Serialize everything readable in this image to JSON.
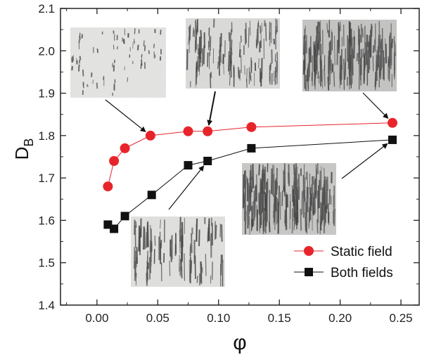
{
  "chart_data": {
    "type": "scatter",
    "xlabel": "φ",
    "ylabel": "D",
    "ylabel_subscript": "B",
    "xlim": [
      -0.03,
      0.265
    ],
    "ylim": [
      1.4,
      2.1
    ],
    "x_ticks": [
      0.0,
      0.05,
      0.1,
      0.15,
      0.2,
      0.25
    ],
    "x_tick_labels": [
      "0.00",
      "0.05",
      "0.10",
      "0.15",
      "0.20",
      "0.25"
    ],
    "y_ticks": [
      1.4,
      1.5,
      1.6,
      1.7,
      1.8,
      1.9,
      2.0,
      2.1
    ],
    "y_tick_labels": [
      "1.4",
      "1.5",
      "1.6",
      "1.7",
      "1.8",
      "1.9",
      "2.0",
      "2.1"
    ],
    "legend_position": "bottom-right",
    "series": [
      {
        "name": "Static field",
        "marker": "circle",
        "color": "#e8242b",
        "line_color": "#e8242b",
        "x": [
          0.009,
          0.014,
          0.023,
          0.044,
          0.075,
          0.091,
          0.127,
          0.243
        ],
        "y": [
          1.68,
          1.74,
          1.77,
          1.8,
          1.81,
          1.81,
          1.82,
          1.83
        ]
      },
      {
        "name": "Both fields",
        "marker": "square",
        "color": "#111111",
        "line_color": "#111111",
        "x": [
          0.009,
          0.014,
          0.023,
          0.045,
          0.075,
          0.091,
          0.127,
          0.243
        ],
        "y": [
          1.59,
          1.58,
          1.61,
          1.66,
          1.73,
          1.74,
          1.77,
          1.79
        ]
      }
    ],
    "insets": [
      {
        "name": "inset-static-low",
        "texture": "sparse-streaks",
        "points_to": {
          "series": 0,
          "index": 3
        }
      },
      {
        "name": "inset-static-mid",
        "texture": "dense-streaks",
        "points_to": {
          "series": 0,
          "index": 5
        }
      },
      {
        "name": "inset-static-high",
        "texture": "very-dense-streaks",
        "points_to": {
          "series": 0,
          "index": 7
        }
      },
      {
        "name": "inset-both-mid",
        "texture": "column-streaks",
        "points_to": {
          "series": 1,
          "index": 5
        }
      },
      {
        "name": "inset-both-high",
        "texture": "very-dense-columns",
        "points_to": {
          "series": 1,
          "index": 7
        }
      }
    ]
  }
}
